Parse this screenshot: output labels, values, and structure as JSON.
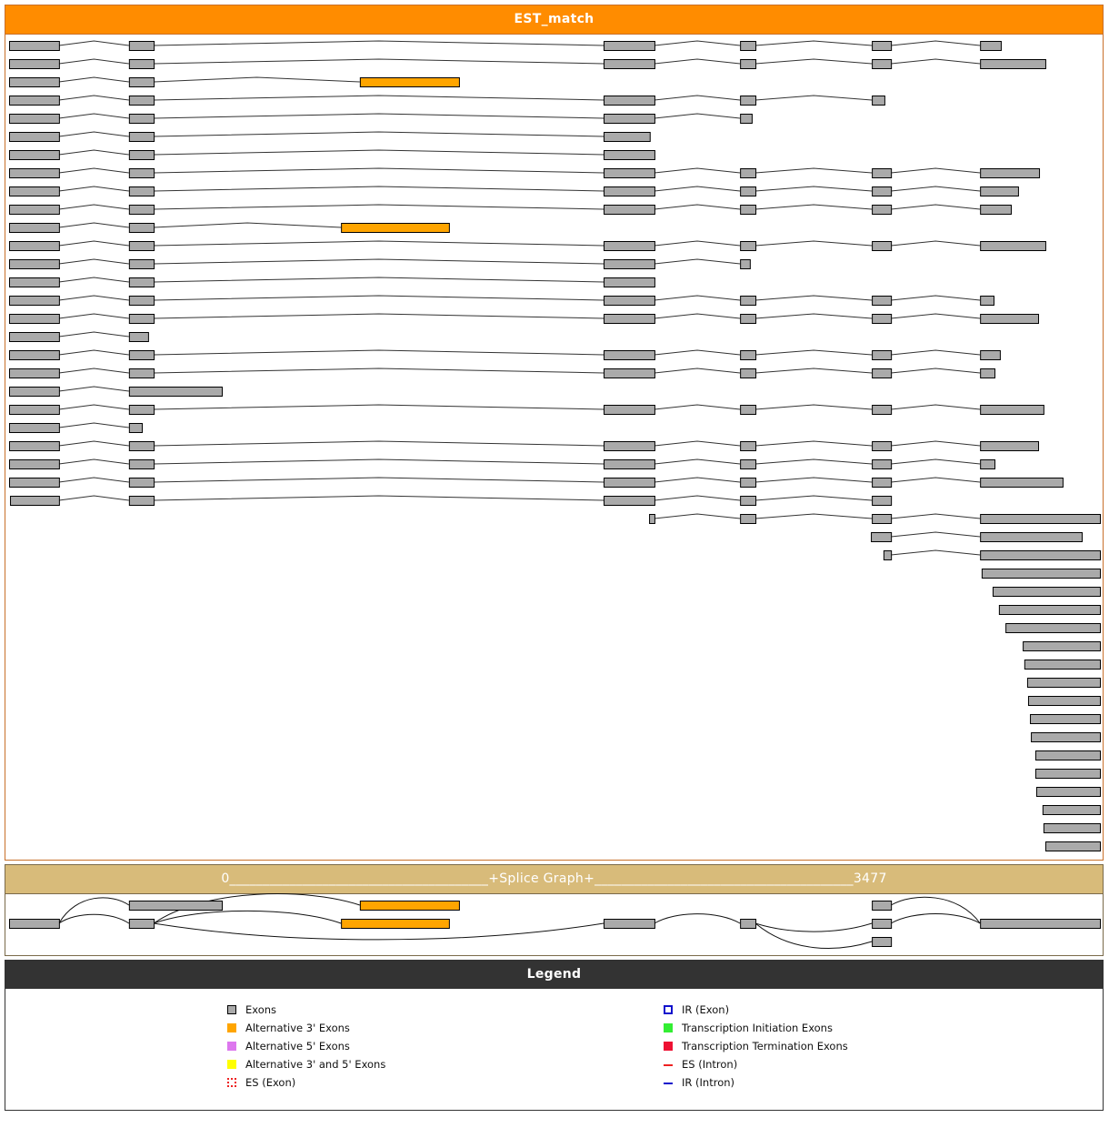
{
  "est_panel": {
    "title": "EST_match"
  },
  "splice_panel": {
    "title": "0_______________________________________+Splice Graph+_______________________________________3477"
  },
  "legend_panel": {
    "title": "Legend"
  },
  "scale": {
    "start": 0,
    "end": 3477
  },
  "colors": {
    "exon": "#aaaaaa",
    "alt3": "#FFA500",
    "alt5": "#DD77EE",
    "alt35": "#FFFF00",
    "es": "#EE2222",
    "ir": "#1111CC",
    "init": "#33EE33",
    "term": "#EE1133"
  },
  "est_rows": [
    {
      "exons": [
        [
          0,
          159
        ],
        [
          382,
          461
        ],
        [
          1895,
          2057
        ],
        [
          2330,
          2379
        ],
        [
          2750,
          2811
        ],
        [
          3095,
          3161
        ]
      ]
    },
    {
      "exons": [
        [
          0,
          159
        ],
        [
          382,
          461
        ],
        [
          1895,
          2057
        ],
        [
          2330,
          2379
        ],
        [
          2750,
          2811
        ],
        [
          3095,
          3303
        ]
      ]
    },
    {
      "exons": [
        [
          0,
          159
        ],
        [
          382,
          461
        ],
        [
          1118,
          1434,
          "alt3"
        ]
      ]
    },
    {
      "exons": [
        [
          0,
          159
        ],
        [
          382,
          461
        ],
        [
          1895,
          2057
        ],
        [
          2330,
          2379
        ],
        [
          2750,
          2790
        ]
      ]
    },
    {
      "exons": [
        [
          0,
          159
        ],
        [
          382,
          461
        ],
        [
          1895,
          2057
        ],
        [
          2330,
          2367
        ]
      ]
    },
    {
      "exons": [
        [
          0,
          159
        ],
        [
          382,
          461
        ],
        [
          1895,
          2042
        ]
      ]
    },
    {
      "exons": [
        [
          0,
          159
        ],
        [
          382,
          461
        ],
        [
          1895,
          2057
        ]
      ]
    },
    {
      "exons": [
        [
          0,
          159
        ],
        [
          382,
          461
        ],
        [
          1895,
          2057
        ],
        [
          2330,
          2379
        ],
        [
          2750,
          2811
        ],
        [
          3095,
          3283
        ]
      ]
    },
    {
      "exons": [
        [
          0,
          159
        ],
        [
          382,
          461
        ],
        [
          1895,
          2057
        ],
        [
          2330,
          2379
        ],
        [
          2750,
          2811
        ],
        [
          3095,
          3216
        ]
      ]
    },
    {
      "exons": [
        [
          0,
          159
        ],
        [
          382,
          461
        ],
        [
          1895,
          2057
        ],
        [
          2330,
          2379
        ],
        [
          2750,
          2811
        ],
        [
          3095,
          3193
        ]
      ]
    },
    {
      "exons": [
        [
          0,
          159
        ],
        [
          382,
          461
        ],
        [
          1058,
          1402,
          "alt3"
        ]
      ]
    },
    {
      "exons": [
        [
          0,
          159
        ],
        [
          382,
          461
        ],
        [
          1895,
          2057
        ],
        [
          2330,
          2379
        ],
        [
          2750,
          2811
        ],
        [
          3095,
          3303
        ]
      ]
    },
    {
      "exons": [
        [
          0,
          159
        ],
        [
          382,
          461
        ],
        [
          1895,
          2057
        ],
        [
          2330,
          2361
        ]
      ]
    },
    {
      "exons": [
        [
          0,
          159
        ],
        [
          382,
          461
        ],
        [
          1895,
          2057
        ]
      ]
    },
    {
      "exons": [
        [
          0,
          159
        ],
        [
          382,
          461
        ],
        [
          1895,
          2057
        ],
        [
          2330,
          2379
        ],
        [
          2750,
          2811
        ],
        [
          3095,
          3138
        ]
      ]
    },
    {
      "exons": [
        [
          0,
          159
        ],
        [
          382,
          461
        ],
        [
          1895,
          2057
        ],
        [
          2330,
          2379
        ],
        [
          2750,
          2811
        ],
        [
          3095,
          3280
        ]
      ]
    },
    {
      "exons": [
        [
          0,
          159
        ],
        [
          382,
          443
        ]
      ]
    },
    {
      "exons": [
        [
          0,
          159
        ],
        [
          382,
          461
        ],
        [
          1895,
          2057
        ],
        [
          2330,
          2379
        ],
        [
          2750,
          2811
        ],
        [
          3095,
          3158
        ]
      ]
    },
    {
      "exons": [
        [
          0,
          159
        ],
        [
          382,
          461
        ],
        [
          1895,
          2057
        ],
        [
          2330,
          2379
        ],
        [
          2750,
          2811
        ],
        [
          3095,
          3141
        ]
      ]
    },
    {
      "exons": [
        [
          0,
          159
        ],
        [
          382,
          678
        ]
      ]
    },
    {
      "exons": [
        [
          0,
          159
        ],
        [
          382,
          461
        ],
        [
          1895,
          2057
        ],
        [
          2330,
          2379
        ],
        [
          2750,
          2811
        ],
        [
          3095,
          3297
        ]
      ]
    },
    {
      "exons": [
        [
          0,
          159
        ],
        [
          382,
          423
        ]
      ]
    },
    {
      "exons": [
        [
          0,
          159
        ],
        [
          382,
          461
        ],
        [
          1895,
          2057
        ],
        [
          2330,
          2379
        ],
        [
          2750,
          2811
        ],
        [
          3095,
          3280
        ]
      ]
    },
    {
      "exons": [
        [
          0,
          159
        ],
        [
          382,
          461
        ],
        [
          1895,
          2057
        ],
        [
          2330,
          2379
        ],
        [
          2750,
          2811
        ],
        [
          3095,
          3141
        ]
      ]
    },
    {
      "exons": [
        [
          0,
          159
        ],
        [
          382,
          461
        ],
        [
          1895,
          2057
        ],
        [
          2330,
          2379
        ],
        [
          2750,
          2811
        ],
        [
          3095,
          3358
        ]
      ]
    },
    {
      "exons": [
        [
          3,
          159
        ],
        [
          382,
          461
        ],
        [
          1895,
          2057
        ],
        [
          2330,
          2379
        ],
        [
          2750,
          2811
        ]
      ]
    },
    {
      "exons": [
        [
          2040,
          2057
        ],
        [
          2330,
          2379
        ],
        [
          2750,
          2811
        ],
        [
          3095,
          3477
        ]
      ]
    },
    {
      "exons": [
        [
          2747,
          2811
        ],
        [
          3095,
          3419
        ]
      ]
    },
    {
      "exons": [
        [
          2787,
          2811
        ],
        [
          3095,
          3477
        ]
      ]
    },
    {
      "exons": [
        [
          3100,
          3477
        ]
      ]
    },
    {
      "exons": [
        [
          3135,
          3477
        ]
      ]
    },
    {
      "exons": [
        [
          3155,
          3477
        ]
      ]
    },
    {
      "exons": [
        [
          3176,
          3477
        ]
      ]
    },
    {
      "exons": [
        [
          3231,
          3477
        ]
      ]
    },
    {
      "exons": [
        [
          3236,
          3477
        ]
      ]
    },
    {
      "exons": [
        [
          3245,
          3477
        ]
      ]
    },
    {
      "exons": [
        [
          3248,
          3477
        ]
      ]
    },
    {
      "exons": [
        [
          3254,
          3477
        ]
      ]
    },
    {
      "exons": [
        [
          3257,
          3477
        ]
      ]
    },
    {
      "exons": [
        [
          3271,
          3477
        ]
      ]
    },
    {
      "exons": [
        [
          3271,
          3477
        ]
      ]
    },
    {
      "exons": [
        [
          3274,
          3477
        ]
      ]
    },
    {
      "exons": [
        [
          3294,
          3477
        ]
      ]
    },
    {
      "exons": [
        [
          3297,
          3477
        ]
      ]
    },
    {
      "exons": [
        [
          3303,
          3477
        ]
      ]
    }
  ],
  "splice_graph": {
    "nodes": [
      {
        "id": "e1",
        "start": 0,
        "end": 159,
        "track": 1,
        "type": "exon"
      },
      {
        "id": "e2a",
        "start": 382,
        "end": 678,
        "track": 0,
        "type": "exon"
      },
      {
        "id": "e2",
        "start": 382,
        "end": 461,
        "track": 1,
        "type": "exon"
      },
      {
        "id": "e3a",
        "start": 1118,
        "end": 1434,
        "track": 0,
        "type": "alt3"
      },
      {
        "id": "e3b",
        "start": 1058,
        "end": 1402,
        "track": 1,
        "type": "alt3"
      },
      {
        "id": "e4",
        "start": 1895,
        "end": 2057,
        "track": 1,
        "type": "exon"
      },
      {
        "id": "e5",
        "start": 2330,
        "end": 2379,
        "track": 1,
        "type": "exon"
      },
      {
        "id": "e6a",
        "start": 2750,
        "end": 2811,
        "track": 0,
        "type": "exon"
      },
      {
        "id": "e6",
        "start": 2750,
        "end": 2811,
        "track": 1,
        "type": "exon"
      },
      {
        "id": "e6b",
        "start": 2750,
        "end": 2811,
        "track": 2,
        "type": "exon"
      },
      {
        "id": "e7",
        "start": 3095,
        "end": 3477,
        "track": 1,
        "type": "exon"
      }
    ],
    "edges": [
      {
        "from": "e1",
        "to": "e2a",
        "bend": "up"
      },
      {
        "from": "e1",
        "to": "e2",
        "bend": "up"
      },
      {
        "from": "e2",
        "to": "e3a",
        "bend": "up"
      },
      {
        "from": "e2",
        "to": "e3b",
        "bend": "up"
      },
      {
        "from": "e2",
        "to": "e4",
        "bend": "down"
      },
      {
        "from": "e4",
        "to": "e5",
        "bend": "up"
      },
      {
        "from": "e5",
        "to": "e6",
        "bend": "down"
      },
      {
        "from": "e5",
        "to": "e6b",
        "bend": "down"
      },
      {
        "from": "e6a",
        "to": "e7",
        "bend": "up"
      },
      {
        "from": "e6",
        "to": "e7",
        "bend": "up"
      }
    ]
  },
  "legend": {
    "left": [
      {
        "label": "Exons",
        "swatch": "exon"
      },
      {
        "label": "Alternative 3' Exons",
        "swatch": "alt3"
      },
      {
        "label": "Alternative 5' Exons",
        "swatch": "alt5"
      },
      {
        "label": "Alternative 3' and 5' Exons",
        "swatch": "alt35"
      },
      {
        "label": "ES (Exon)",
        "swatch": "es-exon"
      }
    ],
    "right": [
      {
        "label": "IR (Exon)",
        "swatch": "ir-exon"
      },
      {
        "label": "Transcription Initiation Exons",
        "swatch": "init"
      },
      {
        "label": "Transcription Termination Exons",
        "swatch": "term"
      },
      {
        "label": "ES (Intron)",
        "swatch": "es-intron"
      },
      {
        "label": "IR (Intron)",
        "swatch": "ir-intron"
      }
    ]
  }
}
